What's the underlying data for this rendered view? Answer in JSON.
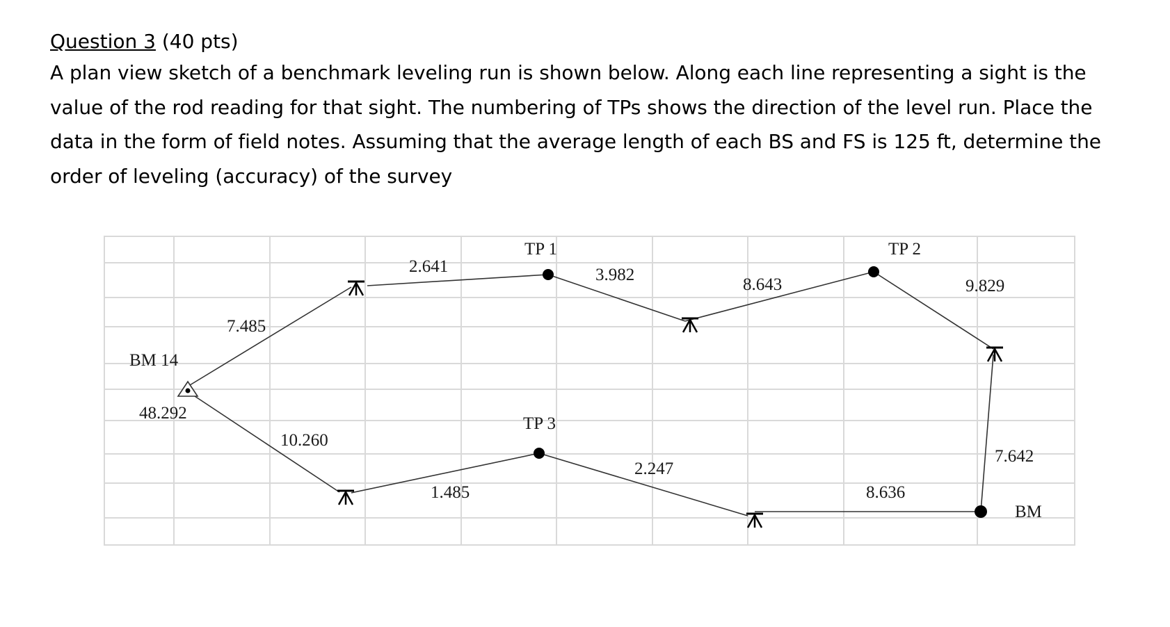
{
  "question": {
    "title_underlined": "Question 3",
    "title_suffix": " (40 pts)",
    "lines": [
      "A plan view sketch of a benchmark leveling run is shown below. Along each line representing a sight is the",
      "value of the rod reading for that sight. The numbering of TPs shows the direction of the level run. Place the",
      "data in the form of field notes. Assuming that the average length of each BS and FS is 125 ft, determine the",
      "order of leveling (accuracy) of the survey"
    ]
  },
  "sketch": {
    "labels": {
      "bm14": "BM 14",
      "bm14_elev": "48.292",
      "tp1": "TP 1",
      "tp2": "TP 2",
      "tp3": "TP 3",
      "bm_end": "BM"
    },
    "readings": {
      "r1": "7.485",
      "r2": "2.641",
      "r3": "3.982",
      "r4": "8.643",
      "r5": "9.829",
      "r6": "7.642",
      "r7": "8.636",
      "r8": "2.247",
      "r9": "1.485",
      "r10": "10.260"
    },
    "colors": {
      "grid": "#d9d9d9",
      "line": "#333333",
      "point": "#000000"
    }
  }
}
